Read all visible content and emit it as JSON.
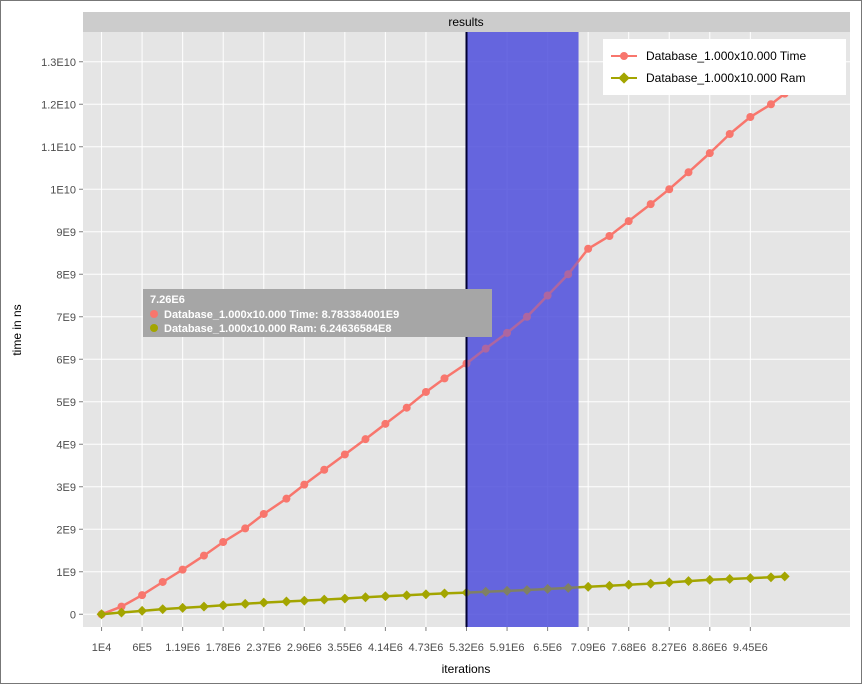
{
  "chart_data": {
    "type": "line",
    "title": "results",
    "xlabel": "iterations",
    "ylabel": "time in ns",
    "xlim": [
      -260000,
      10900000
    ],
    "ylim": [
      -300000000,
      13700000000
    ],
    "grid": true,
    "x_tick_labels": [
      {
        "x": 10000,
        "label": "1E4"
      },
      {
        "x": 600000,
        "label": "6E5"
      },
      {
        "x": 1190000,
        "label": "1.19E6"
      },
      {
        "x": 1780000,
        "label": "1.78E6"
      },
      {
        "x": 2370000,
        "label": "2.37E6"
      },
      {
        "x": 2960000,
        "label": "2.96E6"
      },
      {
        "x": 3550000,
        "label": "3.55E6"
      },
      {
        "x": 4140000,
        "label": "4.14E6"
      },
      {
        "x": 4730000,
        "label": "4.73E6"
      },
      {
        "x": 5320000,
        "label": "5.32E6"
      },
      {
        "x": 5910000,
        "label": "5.91E6"
      },
      {
        "x": 6500000,
        "label": "6.5E6"
      },
      {
        "x": 7090000,
        "label": "7.09E6"
      },
      {
        "x": 7680000,
        "label": "7.68E6"
      },
      {
        "x": 8270000,
        "label": "8.27E6"
      },
      {
        "x": 8860000,
        "label": "8.86E6"
      },
      {
        "x": 9450000,
        "label": "9.45E6"
      }
    ],
    "y_tick_labels": [
      {
        "y": 0,
        "label": "0"
      },
      {
        "y": 1000000000,
        "label": "1E9"
      },
      {
        "y": 2000000000,
        "label": "2E9"
      },
      {
        "y": 3000000000,
        "label": "3E9"
      },
      {
        "y": 4000000000,
        "label": "4E9"
      },
      {
        "y": 5000000000,
        "label": "5E9"
      },
      {
        "y": 6000000000,
        "label": "6E9"
      },
      {
        "y": 7000000000,
        "label": "7E9"
      },
      {
        "y": 8000000000,
        "label": "8E9"
      },
      {
        "y": 9000000000,
        "label": "9E9"
      },
      {
        "y": 10000000000,
        "label": "1E10"
      },
      {
        "y": 11000000000,
        "label": "1.1E10"
      },
      {
        "y": 12000000000,
        "label": "1.2E10"
      },
      {
        "y": 13000000000,
        "label": "1.3E10"
      }
    ],
    "series": [
      {
        "name": "Database_1.000x10.000 Time",
        "color": "#f8766d",
        "marker": "circle",
        "x": [
          10000,
          300000,
          600000,
          900000,
          1190000,
          1500000,
          1780000,
          2100000,
          2370000,
          2700000,
          2960000,
          3250000,
          3550000,
          3850000,
          4140000,
          4450000,
          4730000,
          5000000,
          5320000,
          5600000,
          5910000,
          6200000,
          6500000,
          6800000,
          7090000,
          7400000,
          7680000,
          8000000,
          8270000,
          8550000,
          8860000,
          9150000,
          9450000,
          9750000,
          9950000
        ],
        "y": [
          0,
          180000000,
          450000000,
          760000000,
          1050000000,
          1380000000,
          1700000000,
          2020000000,
          2360000000,
          2720000000,
          3050000000,
          3400000000,
          3760000000,
          4120000000,
          4480000000,
          4860000000,
          5230000000,
          5550000000,
          5900000000,
          6250000000,
          6620000000,
          7000000000,
          7500000000,
          8000000000,
          8600000000,
          8900000000,
          9250000000,
          9650000000,
          10000000000,
          10400000000,
          10850000000,
          11300000000,
          11700000000,
          12000000000,
          12250000000
        ]
      },
      {
        "name": "Database_1.000x10.000 Ram",
        "color": "#a3a500",
        "marker": "diamond",
        "x": [
          10000,
          300000,
          600000,
          900000,
          1190000,
          1500000,
          1780000,
          2100000,
          2370000,
          2700000,
          2960000,
          3250000,
          3550000,
          3850000,
          4140000,
          4450000,
          4730000,
          5000000,
          5320000,
          5600000,
          5910000,
          6200000,
          6500000,
          6800000,
          7090000,
          7400000,
          7680000,
          8000000,
          8270000,
          8550000,
          8860000,
          9150000,
          9450000,
          9750000,
          9950000
        ],
        "y": [
          0,
          40000000,
          80000000,
          120000000,
          150000000,
          180000000,
          210000000,
          245000000,
          275000000,
          300000000,
          320000000,
          345000000,
          370000000,
          400000000,
          425000000,
          445000000,
          470000000,
          490000000,
          510000000,
          530000000,
          550000000,
          570000000,
          595000000,
          620000000,
          645000000,
          670000000,
          695000000,
          720000000,
          750000000,
          780000000,
          810000000,
          830000000,
          850000000,
          870000000,
          890000000
        ]
      }
    ],
    "highlight_band": {
      "x_start": 5320000,
      "x_end": 6950000,
      "color": "#5454dd"
    },
    "cursor_line": {
      "x": 5320000
    },
    "tooltip": {
      "header": "7.26E6",
      "lines": [
        {
          "label": "Database_1.000x10.000 Time: 8.783384001E9",
          "color": "#f8766d"
        },
        {
          "label": "Database_1.000x10.000 Ram: 6.24636584E8",
          "color": "#a3a500"
        }
      ]
    },
    "legend_position": "top-right"
  }
}
